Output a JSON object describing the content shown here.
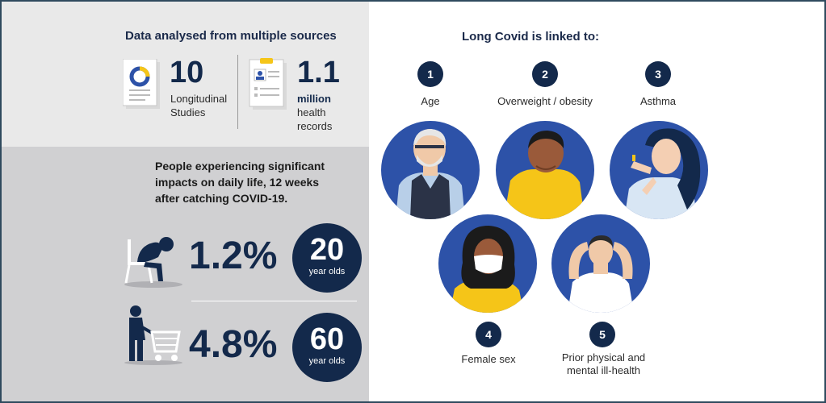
{
  "sources": {
    "title": "Data analysed from multiple sources",
    "studies_number": "10",
    "studies_label_1": "Longitudinal",
    "studies_label_2": "Studies",
    "records_number": "1.1",
    "records_label_1": "million",
    "records_label_2": "health",
    "records_label_3": "records"
  },
  "impacts": {
    "title_1": "People experiencing significant",
    "title_2": "impacts on daily life, 12 weeks",
    "title_3": "after catching COVID-19.",
    "rows": [
      {
        "percent": "1.2%",
        "age_number": "20",
        "age_label": "year olds"
      },
      {
        "percent": "4.8%",
        "age_number": "60",
        "age_label": "year olds"
      }
    ]
  },
  "linked": {
    "title": "Long Covid is linked to:",
    "items": [
      {
        "num": "1",
        "label": "Age"
      },
      {
        "num": "2",
        "label": "Overweight / obesity"
      },
      {
        "num": "3",
        "label": "Asthma"
      },
      {
        "num": "4",
        "label": "Female sex"
      },
      {
        "num": "5",
        "label_1": "Prior physical and",
        "label_2": "mental ill-health"
      }
    ]
  },
  "colors": {
    "navy": "#13294b",
    "portrait_blue": "#2d52a8",
    "yellow": "#f5c518",
    "panel_light": "#e9e9e9",
    "panel_dark": "#d0d0d2"
  }
}
